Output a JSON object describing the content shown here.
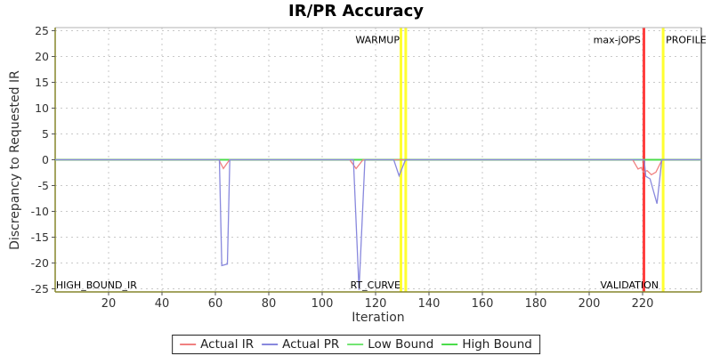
{
  "title": "IR/PR Accuracy",
  "chart_data": {
    "type": "line",
    "title": "IR/PR Accuracy",
    "xlabel": "Iteration",
    "ylabel": "Discrepancy to Requested IR",
    "xlim": [
      0,
      242
    ],
    "ylim": [
      -25.6,
      25.6
    ],
    "x_ticks": [
      20,
      40,
      60,
      80,
      100,
      120,
      140,
      160,
      180,
      200,
      220
    ],
    "y_ticks": [
      -25,
      -20,
      -15,
      -10,
      -5,
      0,
      5,
      10,
      15,
      20,
      25
    ],
    "grid": "dashed",
    "grid_color": "#c9c9c9",
    "legend_position": "bottom",
    "series": [
      {
        "name": "Actual IR",
        "color": "#f08080",
        "points": [
          [
            0,
            0
          ],
          [
            61.3,
            0
          ],
          [
            63,
            -1.7
          ],
          [
            65.3,
            0
          ],
          [
            110.3,
            0
          ],
          [
            112.7,
            -1.7
          ],
          [
            115.3,
            0
          ],
          [
            216.3,
            0
          ],
          [
            218.3,
            -1.8
          ],
          [
            219.5,
            -1.5
          ],
          [
            220.3,
            -2.4
          ],
          [
            221.7,
            -2.1
          ],
          [
            223.3,
            -2.9
          ],
          [
            225,
            -2.4
          ],
          [
            227.3,
            0
          ],
          [
            242,
            0
          ]
        ]
      },
      {
        "name": "Actual PR",
        "color": "#8888dd",
        "points": [
          [
            0,
            0
          ],
          [
            61.5,
            0
          ],
          [
            62.4,
            -20.5
          ],
          [
            64.5,
            -20.2
          ],
          [
            65.4,
            0
          ],
          [
            111.7,
            0
          ],
          [
            113.8,
            -25.2
          ],
          [
            116,
            0
          ],
          [
            126.8,
            0
          ],
          [
            128.8,
            -3.1
          ],
          [
            131.2,
            0
          ],
          [
            220.6,
            0
          ],
          [
            221.2,
            -3.2
          ],
          [
            222.8,
            -3.7
          ],
          [
            225.4,
            -8.5
          ],
          [
            227.2,
            0
          ],
          [
            242,
            0
          ]
        ]
      },
      {
        "name": "Low Bound",
        "color": "#73e573",
        "points": [
          [
            0,
            0
          ],
          [
            242,
            0
          ]
        ]
      },
      {
        "name": "High Bound",
        "color": "#4bdc4b",
        "points": [
          [
            0,
            0
          ],
          [
            242,
            0
          ]
        ]
      }
    ],
    "markers": [
      {
        "x": 129.5,
        "color": "#ffff30",
        "width": 3
      },
      {
        "x": 131.3,
        "color": "#ffff30",
        "width": 3
      },
      {
        "x": 220.5,
        "color": "#ff4040",
        "width": 3
      },
      {
        "x": 227.7,
        "color": "#ffff30",
        "width": 3
      }
    ],
    "annotations": [
      {
        "text": "WARMUP",
        "x": 129,
        "y": 22.6,
        "anchor": "end"
      },
      {
        "text": "max-jOPS",
        "x": 219.3,
        "y": 22.6,
        "anchor": "end"
      },
      {
        "text": "PROFILE",
        "x": 228.7,
        "y": 22.6,
        "anchor": "start"
      },
      {
        "text": "HIGH_BOUND_IR",
        "x": 0.3,
        "y": -24.9,
        "anchor": "start"
      },
      {
        "text": "RT_CURVE",
        "x": 129.3,
        "y": -24.9,
        "anchor": "end"
      },
      {
        "text": "VALIDATION",
        "x": 226,
        "y": -24.9,
        "anchor": "end"
      }
    ],
    "border_colors": {
      "left": "#85852c",
      "bottom": "#85852c",
      "top": "#b3b3b3",
      "right": "#333333"
    }
  }
}
